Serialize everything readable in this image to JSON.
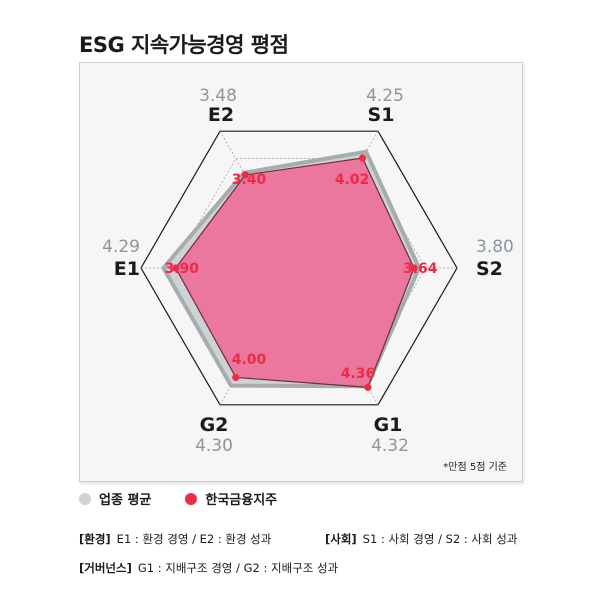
{
  "title": "ESG 지속가능경영 평점",
  "note": "*만점 5점 기준",
  "colors": {
    "industry": "#cdd2d4",
    "company": "#ee2b45",
    "company_fill": "#ee6f9a",
    "industry_label": "#8b979c",
    "grid": "#1a1a1a"
  },
  "chart_data": {
    "type": "radar",
    "max": 5,
    "axes": [
      "S1",
      "S2",
      "G1",
      "G2",
      "E1",
      "E2"
    ],
    "series": [
      {
        "name": "업종 평균",
        "values": [
          4.25,
          3.8,
          4.32,
          4.3,
          4.29,
          3.48
        ]
      },
      {
        "name": "한국금융지주",
        "values": [
          4.02,
          3.64,
          4.36,
          4.0,
          3.9,
          3.4
        ]
      }
    ]
  },
  "labels": {
    "industry": [
      "4.25",
      "3.80",
      "4.32",
      "4.30",
      "4.29",
      "3.48"
    ],
    "company": [
      "4.02",
      "3.64",
      "4.36",
      "4.00",
      "3.90",
      "3.40"
    ]
  },
  "legend": {
    "industry_label": "업종 평균",
    "company_label": "한국금융지주"
  },
  "definitions": {
    "env_cat": "[환경]",
    "env_text": "E1 : 환경 경영 / E2 : 환경 성과",
    "soc_cat": "[사회]",
    "soc_text": "S1 : 사회 경영 / S2 : 사회 성과",
    "gov_cat": "[거버넌스]",
    "gov_text": "G1 : 지배구조 경영 / G2 : 지배구조 성과"
  }
}
